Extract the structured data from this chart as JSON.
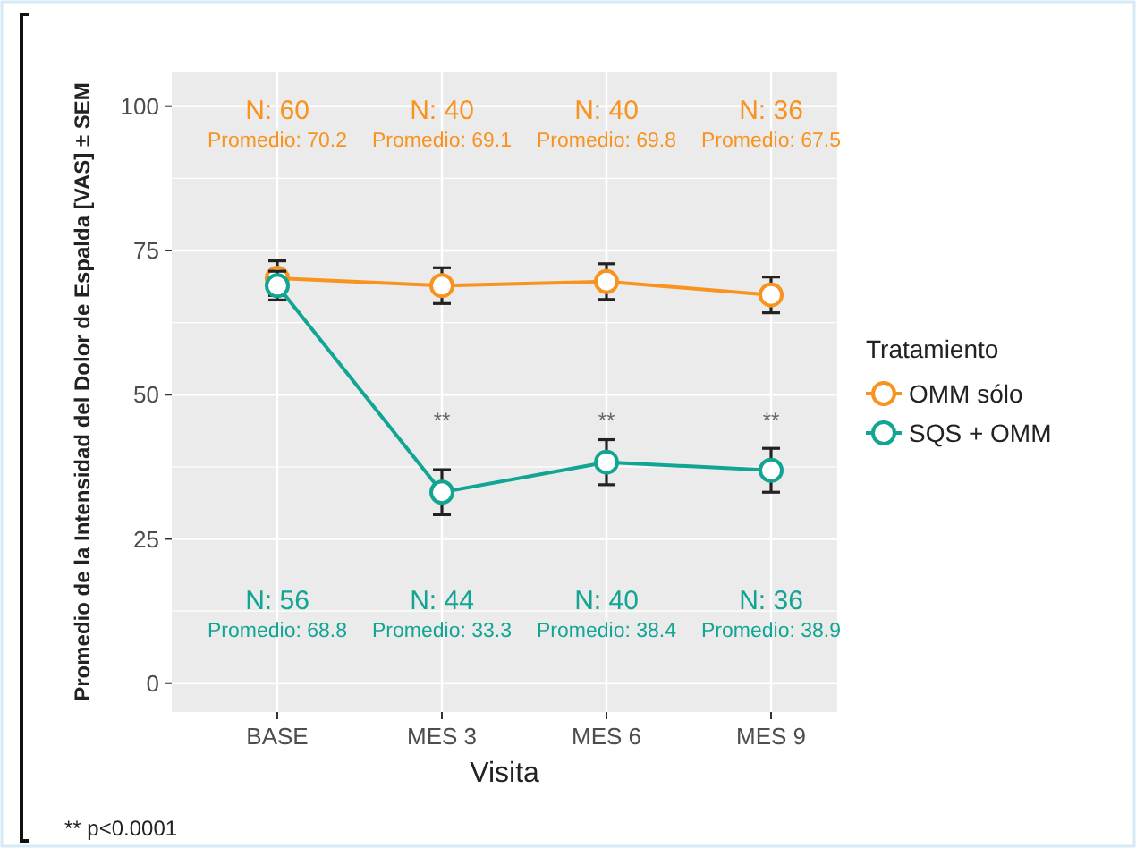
{
  "chart_data": {
    "type": "line",
    "xlabel": "Visita",
    "ylabel": "Promedio de la Intensidad del Dolor de Espalda [VAS] ± SEM",
    "legend_title": "Tratamiento",
    "categories": [
      "BASE",
      "MES 3",
      "MES 6",
      "MES 9"
    ],
    "series": [
      {
        "name": "OMM sólo",
        "color": "#f7931e",
        "values": [
          70.2,
          68.9,
          69.6,
          67.3
        ],
        "errors": [
          3,
          3.1,
          3.1,
          3.1
        ]
      },
      {
        "name": "SQS + OMM",
        "color": "#12a594",
        "values": [
          68.9,
          33.1,
          38.3,
          36.9
        ],
        "errors": [
          2.5,
          3.9,
          3.9,
          3.8
        ]
      }
    ],
    "ylim": [
      -5,
      106
    ],
    "yticks": [
      0,
      25,
      50,
      75,
      100
    ],
    "grid": true,
    "legend": "right",
    "marker": "circle",
    "line_style": "solid",
    "annotations": [
      "N: 60",
      "N: 40",
      "N: 40",
      "N: 36",
      "Promedio: 70.2",
      "Promedio: 69.1",
      "Promedio: 69.8",
      "Promedio: 67.5",
      "**",
      "**",
      "**",
      "N: 56",
      "N: 44",
      "N: 40",
      "N: 36",
      "Promedio: 68.8",
      "Promedio: 33.3",
      "Promedio: 38.4",
      "Promedio: 38.9",
      "** p<0.0001"
    ]
  }
}
